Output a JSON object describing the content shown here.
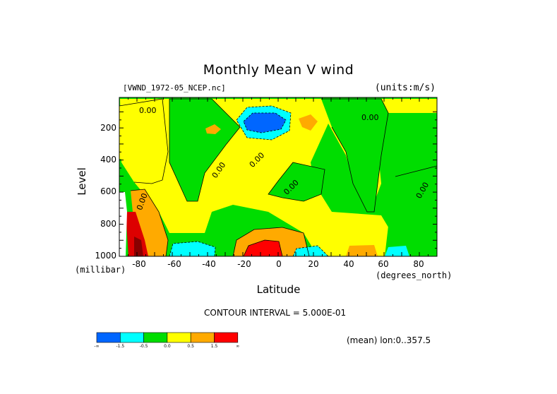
{
  "chart_data": {
    "type": "heatmap",
    "title": "Monthly Mean V wind",
    "dataset": "[VWND_1972-05_NCEP.nc]",
    "units": "(units:m/s)",
    "xlabel": "Latitude",
    "x_units": "(degrees_north)",
    "ylabel": "Level",
    "y_units": "(millibar)",
    "xlim": [
      -90,
      90
    ],
    "ylim": [
      1000,
      10
    ],
    "x_ticks": [
      "-80",
      "-60",
      "-40",
      "-20",
      "0",
      "20",
      "40",
      "60",
      "80"
    ],
    "y_ticks": [
      "200",
      "400",
      "600",
      "800",
      "1000"
    ],
    "contour_interval": "CONTOUR INTERVAL = 5.000E-01",
    "mean_note": "(mean) lon:0..357.5",
    "contour_labels": [
      "0.00",
      "0.00",
      "0.00",
      "0.00",
      "0.00",
      "0.00",
      "0.00"
    ],
    "colorbar": {
      "colors": [
        "#0066ff",
        "#00ffff",
        "#00dd00",
        "#ffff00",
        "#ffaa00",
        "#ff0000"
      ],
      "labels": [
        "-∞",
        "-1.5",
        "-0.5",
        "0.0",
        "0.5",
        "1.5",
        "∞"
      ]
    }
  }
}
